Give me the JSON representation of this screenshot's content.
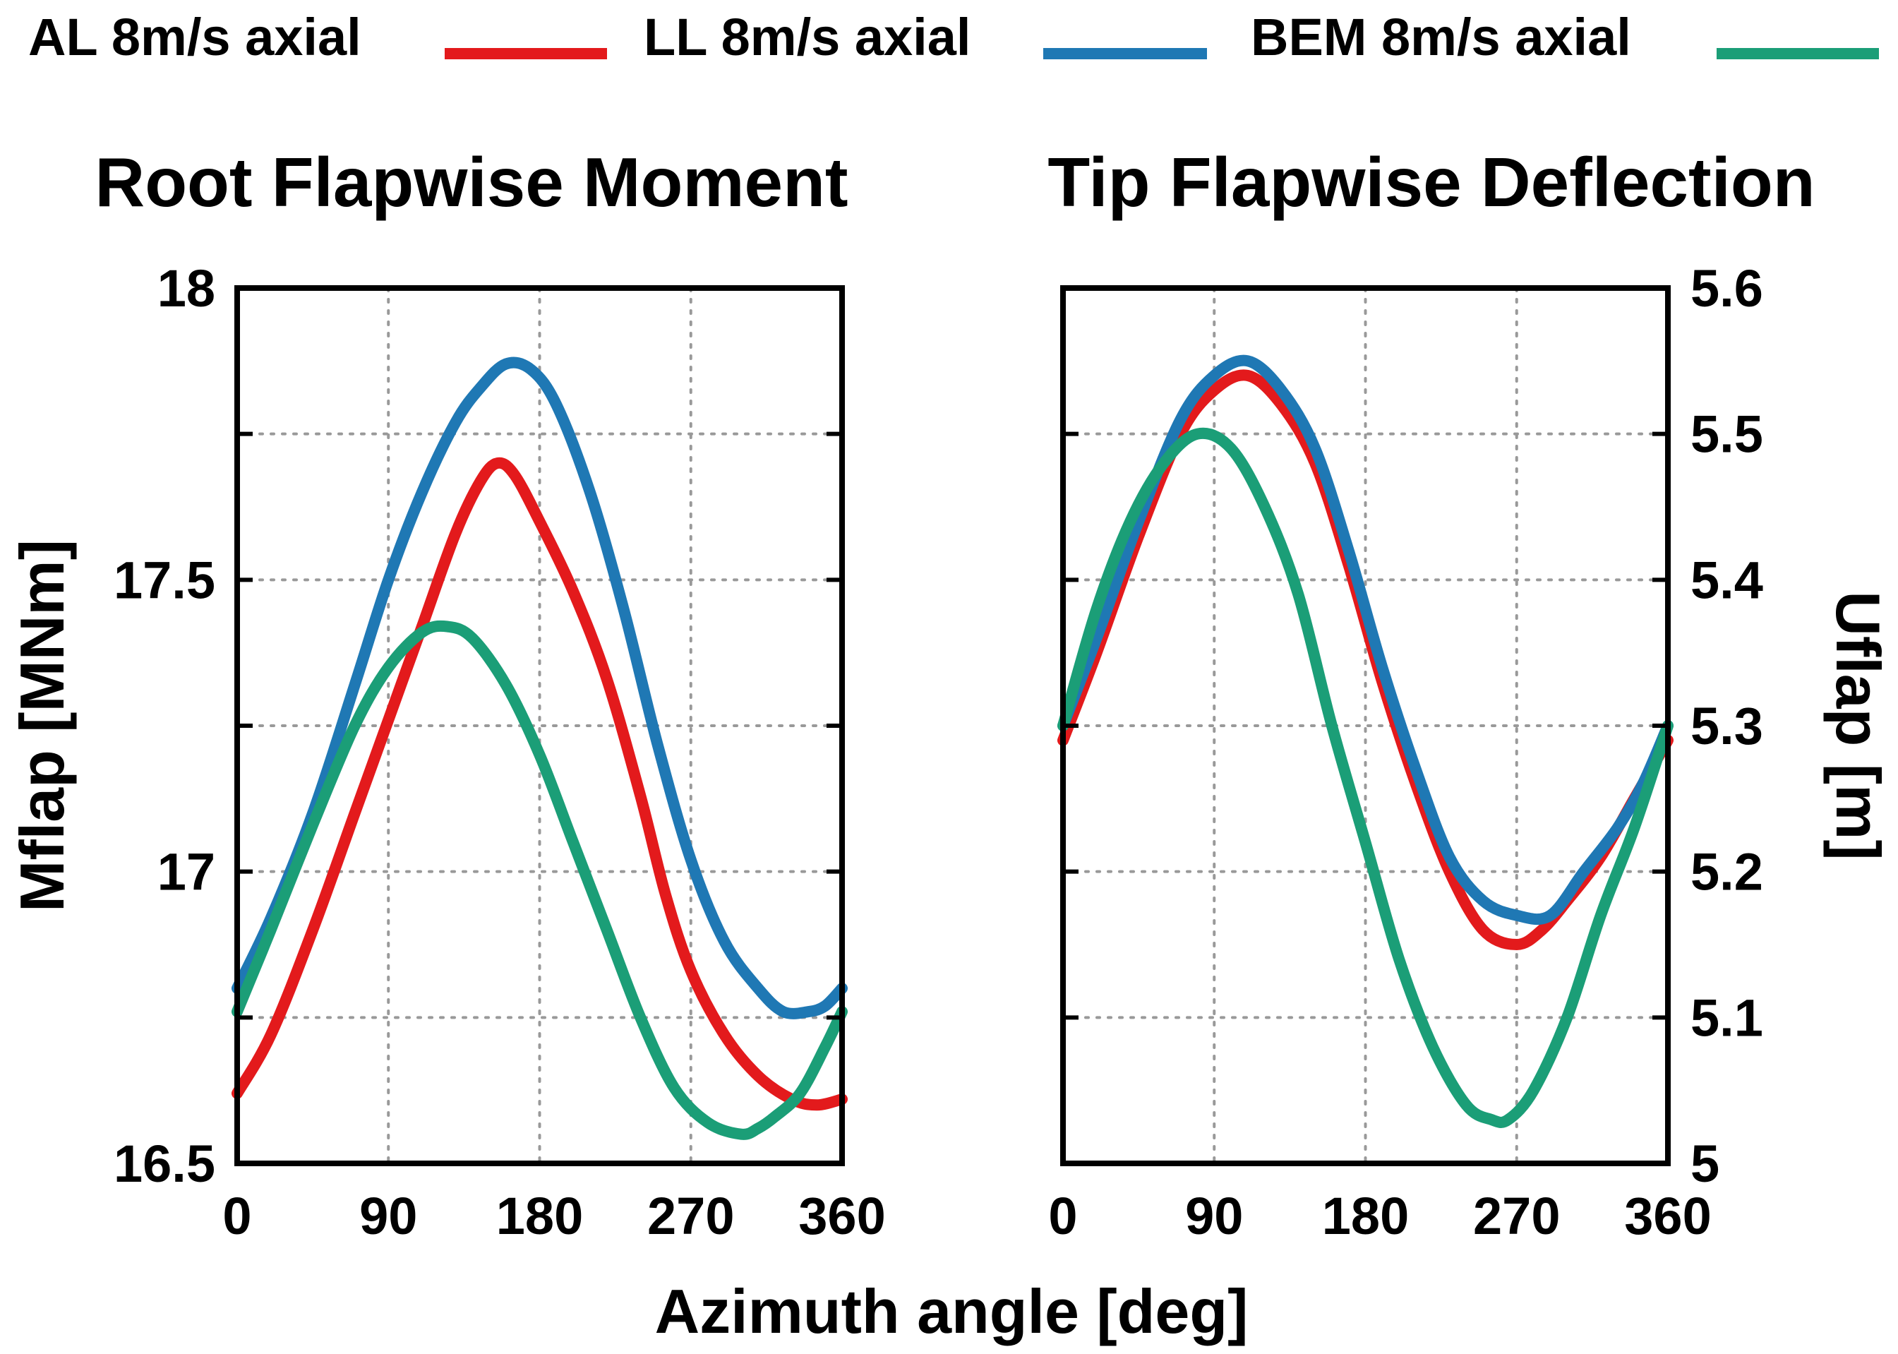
{
  "legend": [
    {
      "label": "AL 8m/s axial",
      "color": "#e31a1c"
    },
    {
      "label": "LL 8m/s axial",
      "color": "#1f78b4"
    },
    {
      "label": "BEM 8m/s axial",
      "color": "#1b9e77"
    }
  ],
  "shared_xlabel": "Azimuth angle [deg]",
  "chart_data": [
    {
      "type": "line",
      "title": "Root Flapwise Moment",
      "xlabel": "Azimuth angle [deg]",
      "ylabel": "Mflap [MNm]",
      "xlim": [
        0,
        360
      ],
      "ylim": [
        16.5,
        18
      ],
      "xticks": [
        0,
        90,
        180,
        270,
        360
      ],
      "xtick_labels": [
        "0",
        "90",
        "180",
        "270",
        "360"
      ],
      "yticks": [
        16.5,
        17,
        17.5,
        18
      ],
      "ytick_labels": [
        "16.5",
        "17",
        "17.5",
        "18"
      ],
      "y_gridlines": [
        16.75,
        17,
        17.25,
        17.5,
        17.75
      ],
      "grid": true,
      "y_axis_side": "left",
      "series": [
        {
          "name": "AL 8m/s axial",
          "color": "#e31a1c",
          "x": [
            0,
            20,
            45,
            70,
            90,
            110,
            130,
            145,
            155,
            165,
            180,
            200,
            220,
            240,
            255,
            270,
            290,
            310,
            330,
            345,
            360
          ],
          "y": [
            16.62,
            16.72,
            16.9,
            17.1,
            17.26,
            17.42,
            17.58,
            17.67,
            17.7,
            17.68,
            17.6,
            17.48,
            17.33,
            17.13,
            16.96,
            16.83,
            16.72,
            16.65,
            16.61,
            16.6,
            16.61
          ]
        },
        {
          "name": "LL 8m/s axial",
          "color": "#1f78b4",
          "x": [
            0,
            20,
            45,
            70,
            90,
            110,
            130,
            145,
            160,
            175,
            190,
            210,
            230,
            250,
            270,
            290,
            310,
            325,
            340,
            350,
            360
          ],
          "y": [
            16.8,
            16.92,
            17.1,
            17.32,
            17.5,
            17.65,
            17.77,
            17.83,
            17.87,
            17.86,
            17.8,
            17.65,
            17.45,
            17.22,
            17.02,
            16.88,
            16.8,
            16.76,
            16.76,
            16.77,
            16.8
          ]
        },
        {
          "name": "BEM 8m/s axial",
          "color": "#1b9e77",
          "x": [
            0,
            20,
            45,
            70,
            90,
            110,
            125,
            140,
            160,
            180,
            200,
            220,
            240,
            260,
            280,
            300,
            310,
            320,
            335,
            350,
            360
          ],
          "y": [
            16.76,
            16.9,
            17.08,
            17.25,
            17.35,
            17.41,
            17.42,
            17.4,
            17.32,
            17.2,
            17.05,
            16.9,
            16.75,
            16.63,
            16.57,
            16.55,
            16.56,
            16.58,
            16.62,
            16.7,
            16.76
          ]
        }
      ]
    },
    {
      "type": "line",
      "title": "Tip Flapwise Deflection",
      "xlabel": "Azimuth angle [deg]",
      "ylabel": "Uflap [m]",
      "xlim": [
        0,
        360
      ],
      "ylim": [
        5,
        5.6
      ],
      "xticks": [
        0,
        90,
        180,
        270,
        360
      ],
      "xtick_labels": [
        "0",
        "90",
        "180",
        "270",
        "360"
      ],
      "yticks": [
        5,
        5.1,
        5.2,
        5.3,
        5.4,
        5.5,
        5.6
      ],
      "ytick_labels": [
        "5",
        "5.1",
        "5.2",
        "5.3",
        "5.4",
        "5.5",
        "5.6"
      ],
      "y_gridlines": [
        5.1,
        5.2,
        5.3,
        5.4,
        5.5
      ],
      "grid": true,
      "y_axis_side": "right",
      "series": [
        {
          "name": "AL 8m/s axial",
          "color": "#e31a1c",
          "x": [
            0,
            20,
            45,
            70,
            90,
            110,
            130,
            150,
            170,
            190,
            210,
            230,
            250,
            270,
            285,
            300,
            320,
            340,
            360
          ],
          "y": [
            5.29,
            5.35,
            5.43,
            5.5,
            5.53,
            5.54,
            5.52,
            5.48,
            5.41,
            5.33,
            5.26,
            5.2,
            5.16,
            5.15,
            5.16,
            5.18,
            5.21,
            5.25,
            5.29
          ]
        },
        {
          "name": "LL 8m/s axial",
          "color": "#1f78b4",
          "x": [
            0,
            20,
            45,
            70,
            90,
            110,
            130,
            150,
            170,
            190,
            210,
            230,
            250,
            270,
            290,
            310,
            330,
            345,
            360
          ],
          "y": [
            5.3,
            5.36,
            5.44,
            5.51,
            5.54,
            5.55,
            5.53,
            5.49,
            5.42,
            5.34,
            5.27,
            5.21,
            5.18,
            5.17,
            5.17,
            5.2,
            5.23,
            5.26,
            5.3
          ]
        },
        {
          "name": "BEM 8m/s axial",
          "color": "#1b9e77",
          "x": [
            0,
            20,
            40,
            60,
            80,
            100,
            120,
            140,
            160,
            180,
            200,
            220,
            240,
            255,
            265,
            280,
            300,
            320,
            340,
            360
          ],
          "y": [
            5.3,
            5.38,
            5.44,
            5.48,
            5.5,
            5.49,
            5.45,
            5.39,
            5.3,
            5.22,
            5.14,
            5.08,
            5.04,
            5.03,
            5.03,
            5.05,
            5.1,
            5.17,
            5.23,
            5.3
          ]
        }
      ]
    }
  ]
}
